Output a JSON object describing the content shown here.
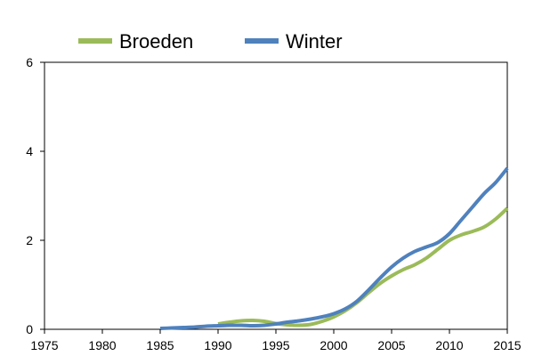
{
  "chart_data": {
    "type": "line",
    "title": "",
    "xlabel": "",
    "ylabel": "",
    "xlim": [
      1975,
      2015
    ],
    "ylim": [
      0,
      6
    ],
    "x_ticks": [
      "1975",
      "1980",
      "1985",
      "1990",
      "1995",
      "2000",
      "2005",
      "2010",
      "2015"
    ],
    "y_ticks": [
      "0",
      "2",
      "4",
      "6"
    ],
    "grid": false,
    "legend_position": "top",
    "series": [
      {
        "name": "Broeden",
        "color": "#9BBB59",
        "x": [
          1990,
          1991,
          1992,
          1993,
          1994,
          1995,
          1996,
          1997,
          1998,
          1999,
          2000,
          2001,
          2002,
          2003,
          2004,
          2005,
          2006,
          2007,
          2008,
          2009,
          2010,
          2011,
          2012,
          2013,
          2014,
          2015
        ],
        "values": [
          0.12,
          0.16,
          0.19,
          0.2,
          0.18,
          0.13,
          0.1,
          0.09,
          0.11,
          0.18,
          0.28,
          0.42,
          0.6,
          0.82,
          1.03,
          1.2,
          1.34,
          1.45,
          1.6,
          1.8,
          2.0,
          2.12,
          2.2,
          2.3,
          2.48,
          2.72
        ]
      },
      {
        "name": "Winter",
        "color": "#4F81BD",
        "x": [
          1985,
          1986,
          1987,
          1988,
          1989,
          1990,
          1991,
          1992,
          1993,
          1994,
          1995,
          1996,
          1997,
          1998,
          1999,
          2000,
          2001,
          2002,
          2003,
          2004,
          2005,
          2006,
          2007,
          2008,
          2009,
          2010,
          2011,
          2012,
          2013,
          2014,
          2015
        ],
        "values": [
          0.02,
          0.03,
          0.04,
          0.05,
          0.07,
          0.08,
          0.09,
          0.09,
          0.08,
          0.09,
          0.12,
          0.16,
          0.19,
          0.23,
          0.28,
          0.35,
          0.46,
          0.63,
          0.88,
          1.15,
          1.4,
          1.6,
          1.75,
          1.85,
          1.95,
          2.15,
          2.45,
          2.75,
          3.05,
          3.3,
          3.62
        ]
      }
    ]
  }
}
